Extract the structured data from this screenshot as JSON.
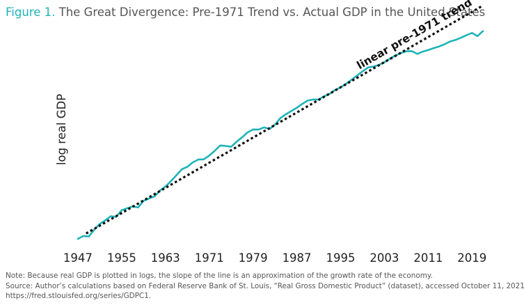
{
  "header": {
    "figure_label": "Figure 1.",
    "title": "The Great Divergence: Pre-1971 Trend vs. Actual GDP in the United States"
  },
  "notes": {
    "note": "Note: Because real GDP is plotted in logs, the slope of the line is an approximation of the growth rate of the economy.",
    "source": "Source: Author’s calculations based on Federal Reserve Bank of St. Louis, “Real Gross Domestic Product” (dataset), accessed October 11, 2021,",
    "url": "https://fred.stlouisfed.org/series/GDPC1."
  },
  "colors": {
    "actual_line": "#1fb3b8",
    "trend_line": "#111111",
    "figure_label": "#1fb3b8",
    "text": "#555555"
  },
  "chart_data": {
    "type": "line",
    "title": "The Great Divergence: Pre-1971 Trend vs. Actual GDP in the United States",
    "xlabel": "",
    "ylabel": "log real GDP",
    "xlim": [
      1946.5,
      2021
    ],
    "ylim": [
      2.4,
      4.6
    ],
    "x_ticks": [
      1947,
      1955,
      1963,
      1971,
      1979,
      1987,
      1995,
      2003,
      2011,
      2019
    ],
    "grid": false,
    "legend": "none",
    "series": [
      {
        "name": "",
        "style": "solid",
        "x": [
          1947,
          1948,
          1949,
          1950,
          1951,
          1952,
          1953,
          1954,
          1955,
          1956,
          1957,
          1958,
          1959,
          1960,
          1961,
          1962,
          1963,
          1964,
          1965,
          1966,
          1967,
          1968,
          1969,
          1970,
          1971,
          1972,
          1973,
          1974,
          1975,
          1976,
          1977,
          1978,
          1979,
          1980,
          1981,
          1982,
          1983,
          1984,
          1985,
          1986,
          1987,
          1988,
          1989,
          1990,
          1991,
          1992,
          1993,
          1994,
          1995,
          1996,
          1997,
          1998,
          1999,
          2000,
          2001,
          2002,
          2003,
          2004,
          2005,
          2006,
          2007,
          2008,
          2009,
          2010,
          2011,
          2012,
          2013,
          2014,
          2015,
          2016,
          2017,
          2018,
          2019,
          2020,
          2021
        ],
        "y": [
          2.437,
          2.467,
          2.462,
          2.535,
          2.595,
          2.633,
          2.677,
          2.67,
          2.741,
          2.761,
          2.78,
          2.77,
          2.84,
          2.864,
          2.887,
          2.949,
          2.992,
          3.049,
          3.112,
          3.175,
          3.2,
          3.248,
          3.278,
          3.28,
          3.32,
          3.371,
          3.427,
          3.422,
          3.413,
          3.467,
          3.513,
          3.566,
          3.597,
          3.595,
          3.619,
          3.601,
          3.647,
          3.718,
          3.758,
          3.792,
          3.827,
          3.868,
          3.903,
          3.914,
          3.914,
          3.948,
          3.975,
          4.015,
          4.042,
          4.08,
          4.124,
          4.168,
          4.213,
          4.254,
          4.264,
          4.281,
          4.309,
          4.347,
          4.38,
          4.406,
          4.426,
          4.427,
          4.398,
          4.422,
          4.438,
          4.459,
          4.477,
          4.5,
          4.529,
          4.546,
          4.569,
          4.597,
          4.62,
          4.586,
          4.64
        ]
      },
      {
        "name": "linear pre-1971 trend",
        "style": "dotted",
        "x": [
          1948.5,
          2021
        ],
        "y": [
          2.494,
          4.91
        ]
      }
    ],
    "annotations": [
      {
        "text": "linear pre-1971 trend",
        "series": "linear pre-1971 trend"
      }
    ]
  }
}
